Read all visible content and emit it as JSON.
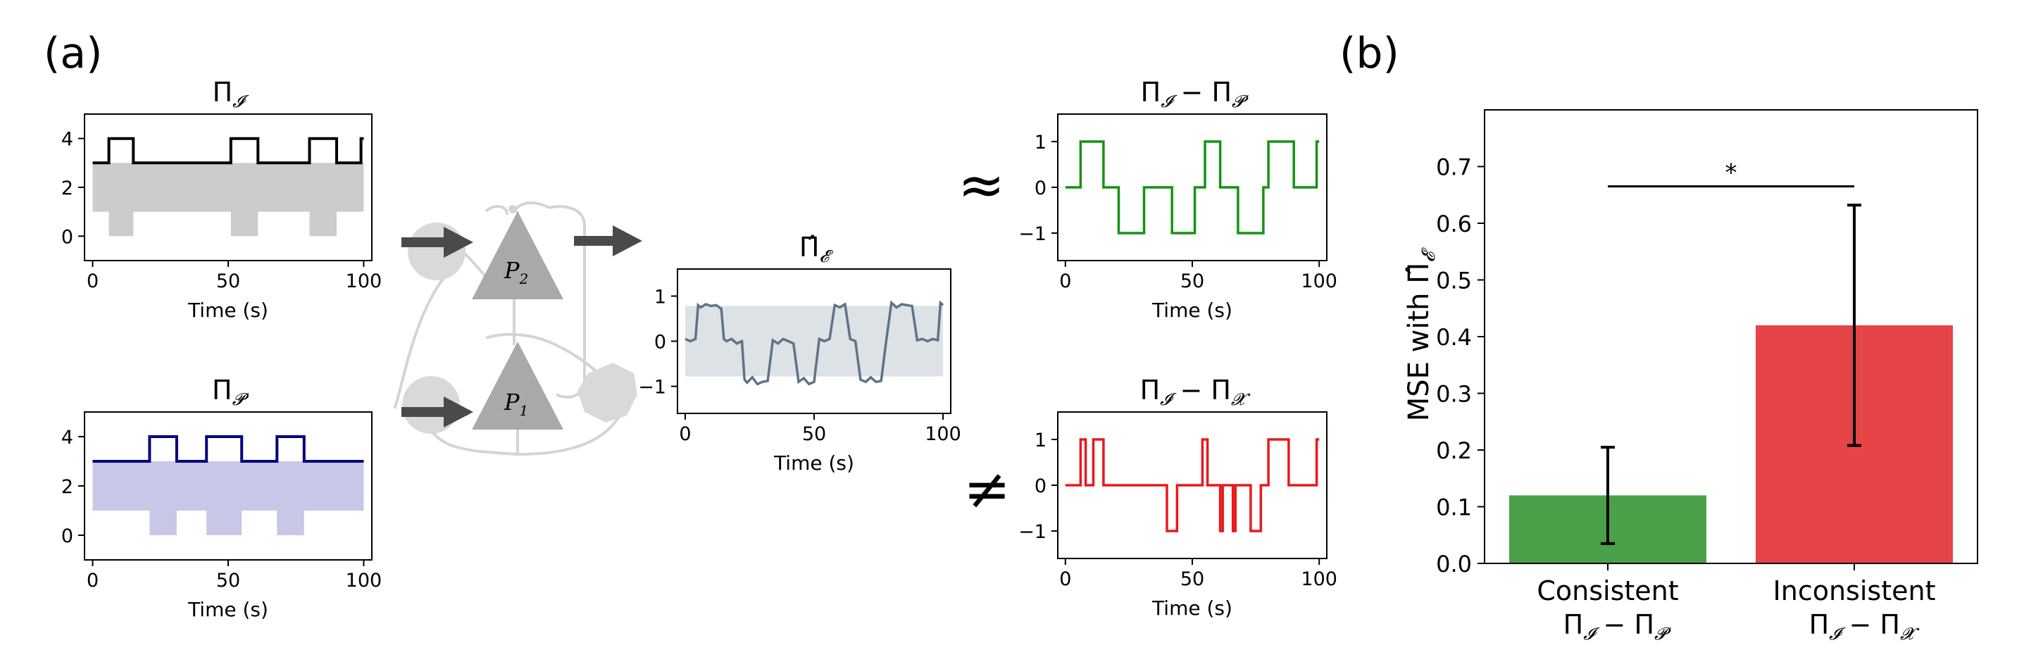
{
  "panel_labels": {
    "a": "(a)",
    "b": "(b)"
  },
  "symbols": {
    "approx": "≈",
    "neq": "≠"
  },
  "colors": {
    "impulse": "#000000",
    "impulse_fill": "#cccccc",
    "pathway": "#00007f",
    "pathway_fill": "#c7c7e8",
    "estimate": "#5f7388",
    "estimate_fill": "#dde2e7",
    "consistent": "#149414",
    "inconsistent": "#e8191c",
    "bar_consistent": "#4aa14a",
    "bar_inconsistent": "#e54547",
    "diagram": "#d4d4d4",
    "arrow": "#4a4a4a"
  },
  "diagram": {
    "p2_label": "P",
    "p2_sub": "2",
    "p1_label": "P",
    "p1_sub": "1"
  },
  "chart_data": [
    {
      "id": "pi-i",
      "type": "line",
      "title": "Π_I",
      "title_main": "Π",
      "title_sub": "𝓘",
      "xlabel": "Time (s)",
      "xlim": [
        -3,
        103
      ],
      "ylim": [
        -1,
        5
      ],
      "xticks": [
        0,
        50,
        100
      ],
      "yticks": [
        0,
        2,
        4
      ],
      "series": [
        {
          "x": [
            0,
            6,
            6,
            15,
            15,
            51,
            51,
            61,
            61,
            80,
            80,
            90,
            90,
            99,
            99,
            100
          ],
          "y": [
            3,
            3,
            4,
            4,
            3,
            3,
            4,
            4,
            3,
            3,
            4,
            4,
            3,
            3,
            4,
            4
          ]
        }
      ],
      "band": {
        "upper": {
          "x": [
            0,
            100
          ],
          "y": [
            3,
            3
          ]
        },
        "lower": {
          "x": [
            0,
            6,
            6,
            15,
            15,
            51,
            51,
            61,
            61,
            80,
            80,
            90,
            90,
            100
          ],
          "y": [
            1,
            1,
            0,
            0,
            1,
            1,
            0,
            0,
            1,
            1,
            0,
            0,
            1,
            1
          ]
        }
      }
    },
    {
      "id": "pi-p",
      "type": "line",
      "title": "Π_P",
      "title_main": "Π",
      "title_sub": "𝓟",
      "xlabel": "Time (s)",
      "xlim": [
        -3,
        103
      ],
      "ylim": [
        -1,
        5
      ],
      "xticks": [
        0,
        50,
        100
      ],
      "yticks": [
        0,
        2,
        4
      ],
      "series": [
        {
          "x": [
            0,
            21,
            21,
            31,
            31,
            42,
            42,
            55,
            55,
            68,
            68,
            78,
            78,
            100
          ],
          "y": [
            3,
            3,
            4,
            4,
            3,
            3,
            4,
            4,
            3,
            3,
            4,
            4,
            3,
            3
          ]
        }
      ],
      "band": {
        "upper": {
          "x": [
            0,
            100
          ],
          "y": [
            3,
            3
          ]
        },
        "lower": {
          "x": [
            0,
            21,
            21,
            31,
            31,
            42,
            42,
            55,
            55,
            68,
            68,
            78,
            78,
            100
          ],
          "y": [
            1,
            1,
            0,
            0,
            1,
            1,
            0,
            0,
            1,
            1,
            0,
            0,
            1,
            1
          ]
        }
      }
    },
    {
      "id": "pi-e-hat",
      "type": "line",
      "title": "Π̂_E",
      "title_main": "Π̂",
      "title_sub": "𝓔",
      "xlabel": "Time (s)",
      "xlim": [
        -3,
        103
      ],
      "ylim": [
        -1.6,
        1.6
      ],
      "xticks": [
        0,
        50,
        100
      ],
      "yticks": [
        -1,
        0,
        1
      ],
      "series": [
        {
          "x": [
            0,
            2,
            4,
            5,
            6,
            8,
            10,
            12,
            14,
            15,
            16,
            18,
            20,
            22,
            23,
            24,
            26,
            28,
            30,
            32,
            34,
            36,
            38,
            40,
            42,
            44,
            46,
            48,
            50,
            52,
            54,
            56,
            58,
            60,
            62,
            64,
            66,
            68,
            70,
            72,
            74,
            76,
            78,
            80,
            82,
            84,
            86,
            88,
            90,
            92,
            94,
            96,
            98,
            99,
            100
          ],
          "y": [
            0.05,
            0.0,
            0.05,
            0.8,
            0.75,
            0.82,
            0.78,
            0.8,
            0.72,
            0.05,
            0.0,
            0.05,
            -0.05,
            0.0,
            -0.85,
            -0.92,
            -0.8,
            -0.95,
            -0.9,
            -0.88,
            0.02,
            -0.05,
            0.05,
            0.0,
            -0.05,
            -0.9,
            -0.82,
            -0.95,
            -0.9,
            0.05,
            0.0,
            0.05,
            0.8,
            0.75,
            0.82,
            0.05,
            0.0,
            -0.85,
            -0.9,
            -0.8,
            -0.9,
            -0.88,
            0.02,
            0.85,
            0.75,
            0.82,
            0.8,
            0.78,
            0.02,
            0.05,
            0.0,
            0.05,
            0.02,
            0.85,
            0.8
          ]
        }
      ],
      "band": {
        "upper": {
          "x": [
            0,
            100
          ],
          "y": [
            0.78,
            0.78
          ]
        },
        "lower": {
          "x": [
            0,
            100
          ],
          "y": [
            -0.78,
            -0.78
          ]
        }
      }
    },
    {
      "id": "pi-i-minus-p",
      "type": "line",
      "title": "Π_I − Π_P",
      "title_main": "Π",
      "title_sub": "𝓘",
      "title_main2": " − Π",
      "title_sub2": "𝓟",
      "xlabel": "Time (s)",
      "xlim": [
        -3,
        103
      ],
      "ylim": [
        -1.6,
        1.6
      ],
      "xticks": [
        0,
        50,
        100
      ],
      "yticks": [
        -1,
        0,
        1
      ],
      "series": [
        {
          "x": [
            0,
            6,
            6,
            15,
            15,
            21,
            21,
            31,
            31,
            42,
            42,
            51,
            51,
            55,
            55,
            61,
            61,
            68,
            68,
            78,
            78,
            80,
            80,
            90,
            90,
            99,
            99,
            100
          ],
          "y": [
            0,
            0,
            1,
            1,
            0,
            0,
            -1,
            -1,
            0,
            0,
            -1,
            -1,
            0,
            0,
            1,
            1,
            0,
            0,
            -1,
            -1,
            0,
            0,
            1,
            1,
            0,
            0,
            1,
            1
          ]
        }
      ]
    },
    {
      "id": "pi-i-minus-x",
      "type": "line",
      "title": "Π_I − Π_X",
      "title_main": "Π",
      "title_sub": "𝓘",
      "title_main2": " − Π",
      "title_sub2": "𝓧",
      "xlabel": "Time (s)",
      "xlim": [
        -3,
        103
      ],
      "ylim": [
        -1.6,
        1.6
      ],
      "xticks": [
        0,
        50,
        100
      ],
      "yticks": [
        -1,
        0,
        1
      ],
      "series": [
        {
          "x": [
            0,
            6,
            6,
            8,
            8,
            11,
            11,
            15,
            15,
            40,
            40,
            44,
            44,
            54,
            54,
            56,
            56,
            61,
            61,
            62,
            62,
            66,
            66,
            67,
            67,
            73,
            73,
            77,
            77,
            80,
            80,
            88,
            88,
            99,
            99,
            100
          ],
          "y": [
            0,
            0,
            1,
            1,
            0,
            0,
            1,
            1,
            0,
            0,
            -1,
            -1,
            0,
            0,
            1,
            1,
            0,
            0,
            -1,
            -1,
            0,
            0,
            -1,
            -1,
            0,
            0,
            -1,
            -1,
            0,
            0,
            1,
            1,
            0,
            0,
            1,
            1
          ]
        }
      ]
    },
    {
      "id": "mse-bars",
      "type": "bar",
      "ylabel": "MSE with Π̂_E",
      "ylabel_main": "MSE with Π̂",
      "ylabel_sub": "𝓔",
      "categories": [
        "Consistent",
        "Inconsistent"
      ],
      "category_sublabels": [
        {
          "main": "Π",
          "sub": "𝓘",
          "main2": " − Π",
          "sub2": "𝓟"
        },
        {
          "main": "Π",
          "sub": "𝓘",
          "main2": " − Π",
          "sub2": "𝓧"
        }
      ],
      "values": [
        0.12,
        0.42
      ],
      "errors": [
        0.085,
        0.212
      ],
      "ylim": [
        0,
        0.8
      ],
      "yticks": [
        0.0,
        0.1,
        0.2,
        0.3,
        0.4,
        0.5,
        0.6,
        0.7
      ],
      "significance": {
        "label": "*",
        "y": 0.665
      }
    }
  ]
}
